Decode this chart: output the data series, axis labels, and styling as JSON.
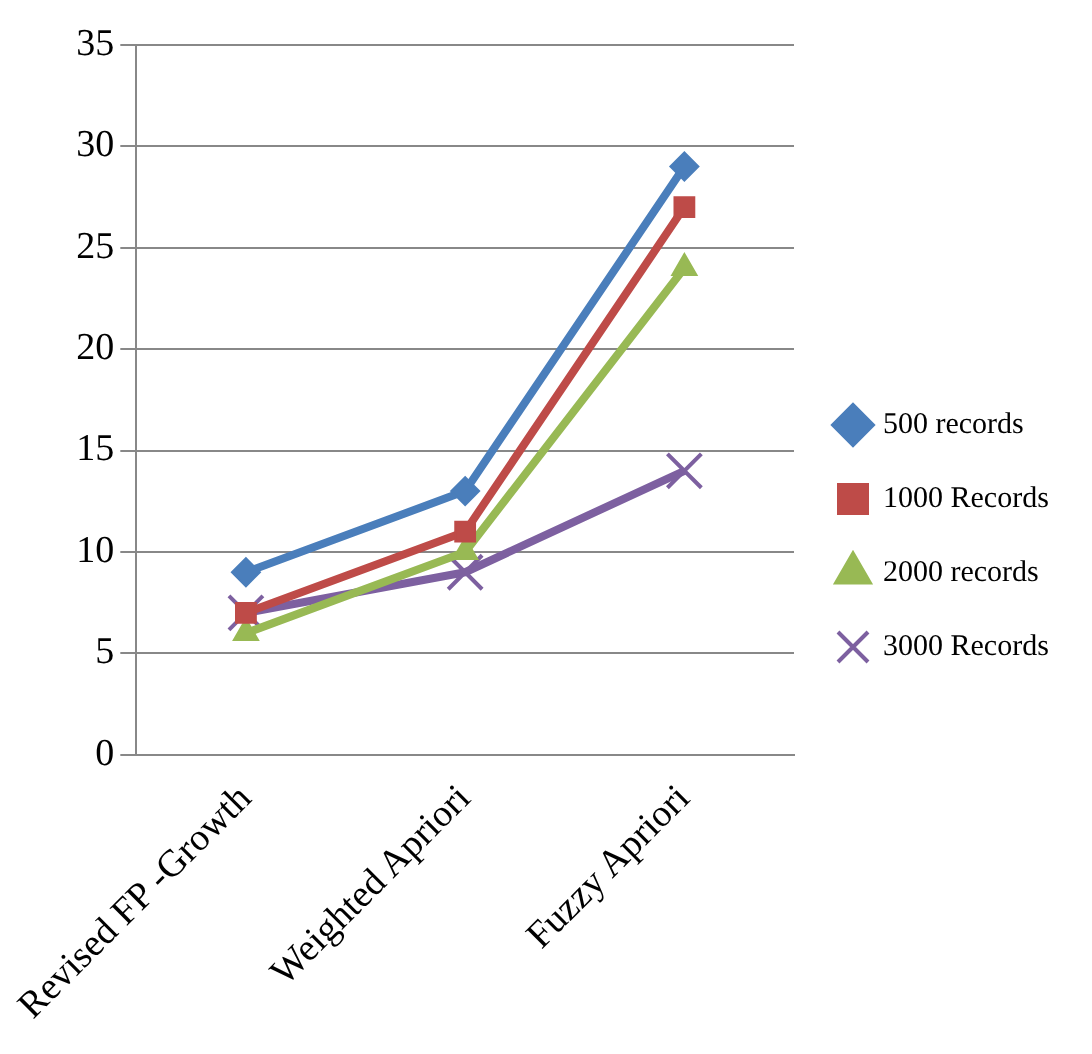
{
  "chart_data": {
    "type": "line",
    "categories": [
      "Revised FP -Growth",
      "Weighted Apriori",
      "Fuzzy Apriori"
    ],
    "series": [
      {
        "name": "500 records",
        "color": "#4a7ebb",
        "marker": "diamond",
        "values": [
          9,
          13,
          29
        ]
      },
      {
        "name": "1000 Records",
        "color": "#be4b48",
        "marker": "square",
        "values": [
          7,
          11,
          27
        ]
      },
      {
        "name": "2000 records",
        "color": "#98b954",
        "marker": "triangle",
        "values": [
          6,
          10,
          24
        ]
      },
      {
        "name": "3000 Records",
        "color": "#7d60a0",
        "marker": "cross",
        "values": [
          7,
          9,
          14
        ]
      }
    ],
    "ylim": [
      0,
      35
    ],
    "yticks": [
      0,
      5,
      10,
      15,
      20,
      25,
      30,
      35
    ],
    "grid": "y",
    "legend": "right",
    "line_style": "solid"
  }
}
